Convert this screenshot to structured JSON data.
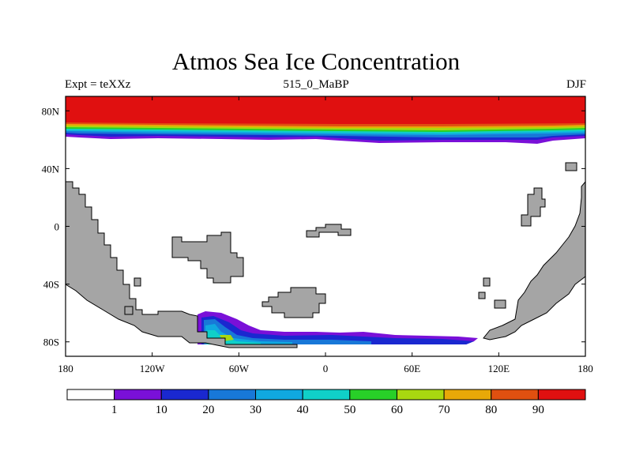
{
  "title": "Atmos Sea Ice Concentration",
  "subtitle_center": "515_0_MaBP",
  "subtitle_left": "Expt = teXXz",
  "subtitle_right": "DJF",
  "colors": {
    "land": "#a5a5a5",
    "ocean": "#ffffff",
    "levels": [
      "#ffffff",
      "#7a10d8",
      "#1a28d0",
      "#1878d8",
      "#10a8e0",
      "#10d0c8",
      "#28d028",
      "#a8d810",
      "#e8a808",
      "#e05010",
      "#e01010"
    ]
  },
  "chart_data": {
    "type": "heatmap",
    "variable": "sea ice concentration",
    "units": "%",
    "projection": "cylindrical equidistant",
    "xlim": [
      -180,
      180
    ],
    "ylim": [
      -90,
      90
    ],
    "x_ticks": [
      -180,
      -120,
      -60,
      0,
      60,
      120,
      180
    ],
    "x_tick_labels": [
      "180",
      "120W",
      "60W",
      "0",
      "60E",
      "120E",
      "180"
    ],
    "y_ticks": [
      80,
      40,
      0,
      -40,
      -80
    ],
    "y_tick_labels": [
      "80N",
      "40N",
      "0",
      "40S",
      "80S"
    ],
    "colorbar": {
      "levels": [
        1,
        10,
        20,
        30,
        40,
        50,
        60,
        70,
        80,
        90
      ],
      "labels": [
        "1",
        "10",
        "20",
        "30",
        "40",
        "50",
        "60",
        "70",
        "80",
        "90"
      ]
    },
    "northern_ice_edge_lat": 62,
    "northern_full_ice_lat": 70,
    "southern_ice_lon_range": [
      -85,
      110
    ],
    "southern_ice_edge_lat": -74
  }
}
